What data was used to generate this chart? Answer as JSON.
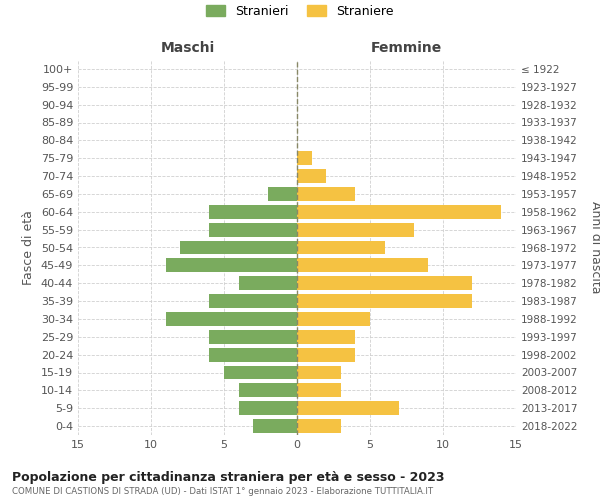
{
  "age_groups": [
    "0-4",
    "5-9",
    "10-14",
    "15-19",
    "20-24",
    "25-29",
    "30-34",
    "35-39",
    "40-44",
    "45-49",
    "50-54",
    "55-59",
    "60-64",
    "65-69",
    "70-74",
    "75-79",
    "80-84",
    "85-89",
    "90-94",
    "95-99",
    "100+"
  ],
  "birth_years": [
    "2018-2022",
    "2013-2017",
    "2008-2012",
    "2003-2007",
    "1998-2002",
    "1993-1997",
    "1988-1992",
    "1983-1987",
    "1978-1982",
    "1973-1977",
    "1968-1972",
    "1963-1967",
    "1958-1962",
    "1953-1957",
    "1948-1952",
    "1943-1947",
    "1938-1942",
    "1933-1937",
    "1928-1932",
    "1923-1927",
    "≤ 1922"
  ],
  "males": [
    3,
    4,
    4,
    5,
    6,
    6,
    9,
    6,
    4,
    9,
    8,
    6,
    6,
    2,
    0,
    0,
    0,
    0,
    0,
    0,
    0
  ],
  "females": [
    3,
    7,
    3,
    3,
    4,
    4,
    5,
    12,
    12,
    9,
    6,
    8,
    14,
    4,
    2,
    1,
    0,
    0,
    0,
    0,
    0
  ],
  "male_color": "#7aab5e",
  "female_color": "#f5c242",
  "title": "Popolazione per cittadinanza straniera per età e sesso - 2023",
  "subtitle": "COMUNE DI CASTIONS DI STRADA (UD) - Dati ISTAT 1° gennaio 2023 - Elaborazione TUTTITALIA.IT",
  "xlabel_left": "Maschi",
  "xlabel_right": "Femmine",
  "ylabel_left": "Fasce di età",
  "ylabel_right": "Anni di nascita",
  "legend_male": "Stranieri",
  "legend_female": "Straniere",
  "xlim": 15,
  "background_color": "#ffffff",
  "grid_color": "#d0d0d0"
}
